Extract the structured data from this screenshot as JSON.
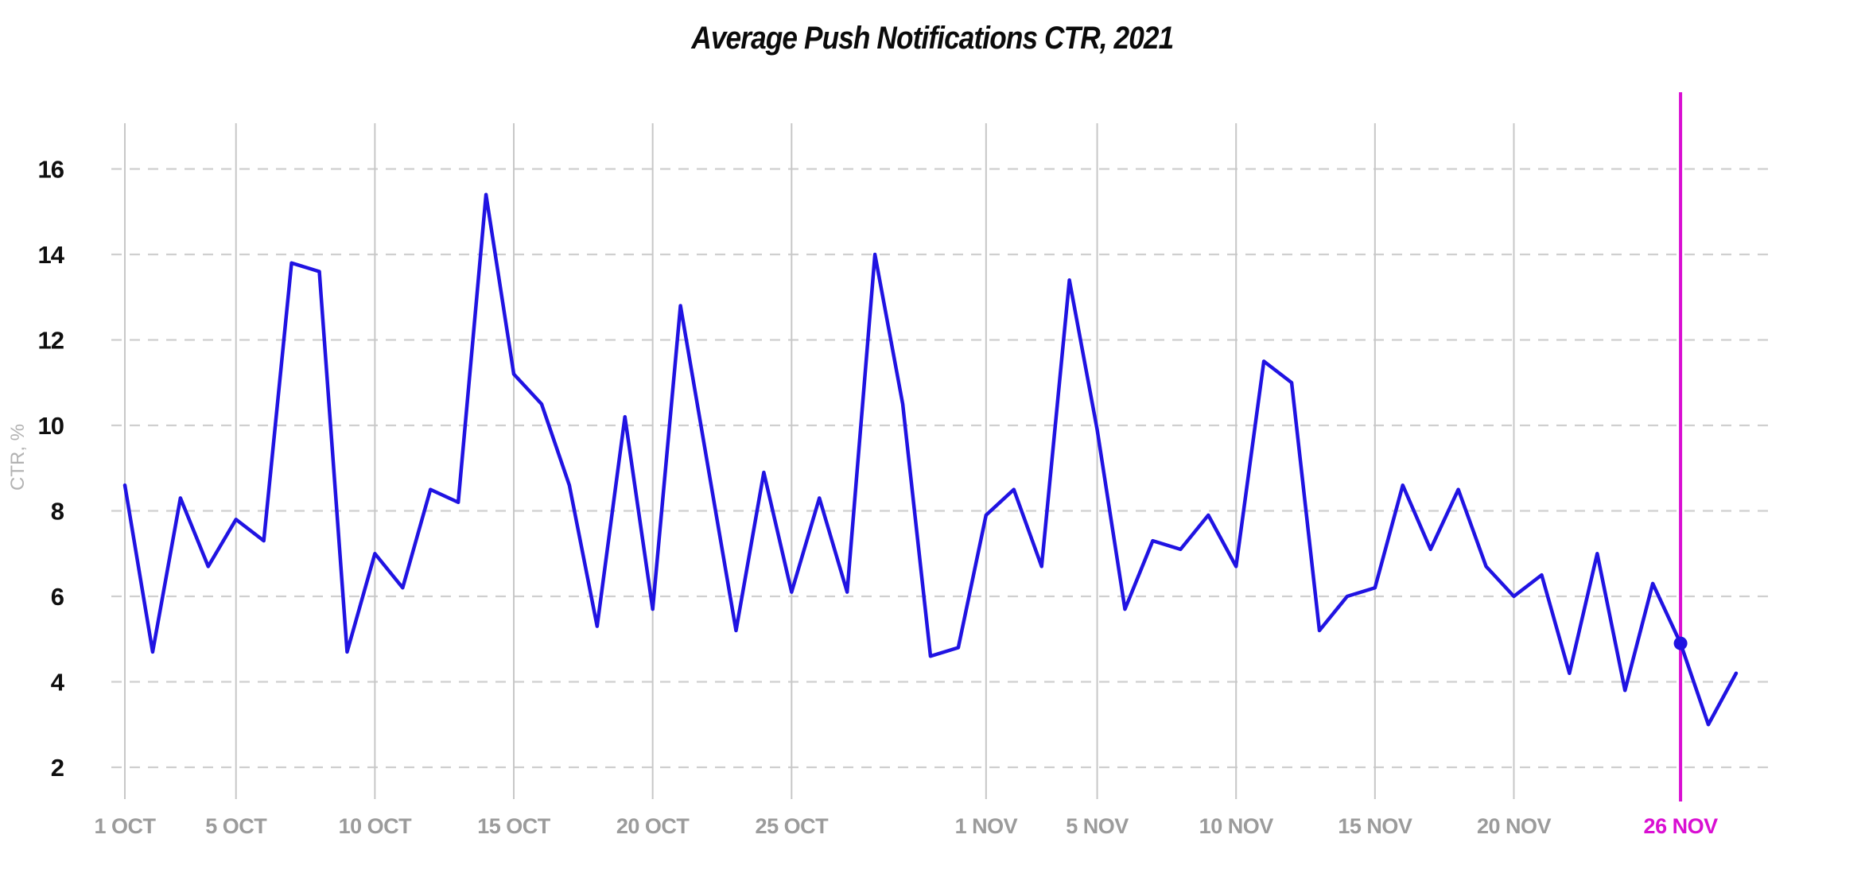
{
  "title": "Average Push Notifications CTR, 2021",
  "chart_data": {
    "type": "line",
    "title": "Average Push Notifications CTR, 2021",
    "xlabel": "",
    "ylabel": "CTR, %",
    "ylim": [
      2,
      16
    ],
    "y_ticks": [
      2,
      4,
      6,
      8,
      10,
      12,
      14,
      16
    ],
    "grid": "horizontal-dashed and vertical-solid at labeled ticks, no axis baselines",
    "legend_position": "none",
    "x_dates": [
      "1 OCT",
      "2 OCT",
      "3 OCT",
      "4 OCT",
      "5 OCT",
      "6 OCT",
      "7 OCT",
      "8 OCT",
      "9 OCT",
      "10 OCT",
      "11 OCT",
      "12 OCT",
      "13 OCT",
      "14 OCT",
      "15 OCT",
      "16 OCT",
      "17 OCT",
      "18 OCT",
      "19 OCT",
      "20 OCT",
      "21 OCT",
      "22 OCT",
      "23 OCT",
      "24 OCT",
      "25 OCT",
      "26 OCT",
      "27 OCT",
      "28 OCT",
      "29 OCT",
      "30 OCT",
      "31 OCT",
      "1 NOV",
      "2 NOV",
      "3 NOV",
      "4 NOV",
      "5 NOV",
      "6 NOV",
      "7 NOV",
      "8 NOV",
      "9 NOV",
      "10 NOV",
      "11 NOV",
      "12 NOV",
      "13 NOV",
      "14 NOV",
      "15 NOV",
      "16 NOV",
      "17 NOV",
      "18 NOV",
      "19 NOV",
      "20 NOV",
      "21 NOV",
      "22 NOV",
      "23 NOV",
      "24 NOV",
      "25 NOV",
      "26 NOV",
      "27 NOV",
      "28 NOV"
    ],
    "series": [
      {
        "name": "Average Push Notifications CTR",
        "values": [
          8.6,
          4.7,
          8.3,
          6.7,
          7.8,
          7.3,
          13.8,
          13.6,
          4.7,
          7.0,
          6.2,
          8.5,
          8.2,
          15.4,
          11.2,
          10.5,
          8.6,
          5.3,
          10.2,
          5.7,
          12.8,
          9.0,
          5.2,
          8.9,
          6.1,
          8.3,
          6.1,
          14.0,
          10.5,
          4.6,
          4.8,
          7.9,
          8.5,
          6.7,
          13.4,
          9.9,
          5.7,
          7.3,
          7.1,
          7.9,
          6.7,
          11.5,
          11.0,
          5.2,
          6.0,
          6.2,
          8.6,
          7.1,
          8.5,
          6.7,
          6.0,
          6.5,
          4.2,
          7.0,
          3.8,
          6.3,
          4.9,
          3.0,
          4.2
        ]
      }
    ],
    "x_ticks": [
      {
        "label": "1 OCT",
        "index": 0,
        "highlight": false
      },
      {
        "label": "5 OCT",
        "index": 4,
        "highlight": false
      },
      {
        "label": "10 OCT",
        "index": 9,
        "highlight": false
      },
      {
        "label": "15 OCT",
        "index": 14,
        "highlight": false
      },
      {
        "label": "20 OCT",
        "index": 19,
        "highlight": false
      },
      {
        "label": "25 OCT",
        "index": 24,
        "highlight": false
      },
      {
        "label": "1 NOV",
        "index": 31,
        "highlight": false
      },
      {
        "label": "5 NOV",
        "index": 35,
        "highlight": false
      },
      {
        "label": "10 NOV",
        "index": 40,
        "highlight": false
      },
      {
        "label": "15 NOV",
        "index": 45,
        "highlight": false
      },
      {
        "label": "20 NOV",
        "index": 50,
        "highlight": false
      },
      {
        "label": "26 NOV",
        "index": 56,
        "highlight": true
      }
    ],
    "highlight_point": {
      "date": "26 NOV",
      "index": 56,
      "value": 4.9
    },
    "colors": {
      "series_line": "#2013e2",
      "highlight_line": "#d90fd2",
      "marker_dot": "#2013e2",
      "h_gridline": "#cfcfcf",
      "v_gridline": "#c7c7c7",
      "x_tick_text": "#9b9b9b",
      "y_tick_text": "#0f0f0f",
      "axis_title_text": "#b2b2b2",
      "title_text": "#0b0b0b"
    }
  }
}
